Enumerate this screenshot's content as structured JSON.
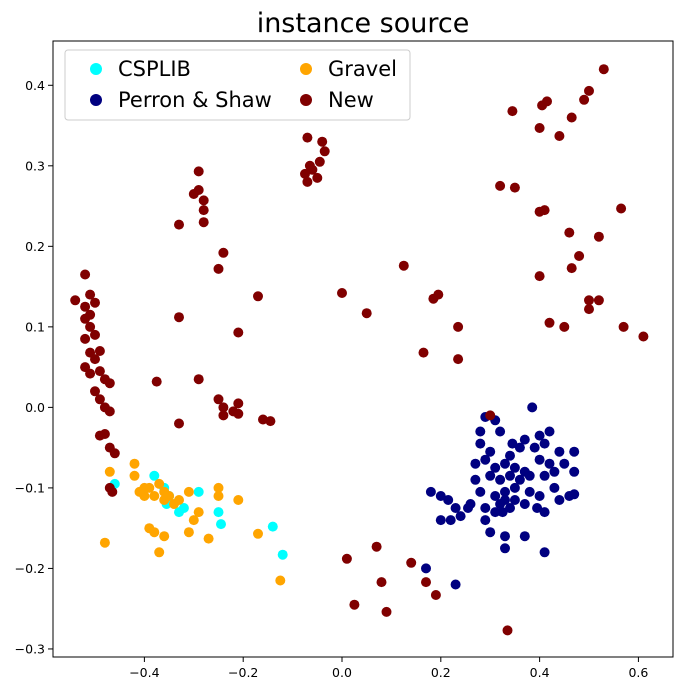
{
  "chart_data": {
    "type": "scatter",
    "title": "instance source",
    "xlabel": "",
    "ylabel": "",
    "xlim": [
      -0.585,
      0.67
    ],
    "ylim": [
      -0.31,
      0.455
    ],
    "xticks": [
      -0.4,
      -0.2,
      0.0,
      0.2,
      0.4,
      0.6
    ],
    "xtick_labels": [
      "−0.4",
      "−0.2",
      "0.0",
      "0.2",
      "0.4",
      "0.6"
    ],
    "yticks": [
      -0.3,
      -0.2,
      -0.1,
      0.0,
      0.1,
      0.2,
      0.3,
      0.4
    ],
    "ytick_labels": [
      "−0.3",
      "−0.2",
      "−0.1",
      "0.0",
      "0.1",
      "0.2",
      "0.3",
      "0.4"
    ],
    "grid": false,
    "legend_position": "top-left",
    "legend_columns": 2,
    "series": [
      {
        "name": "CSPLIB",
        "color": "#00ffff",
        "points": [
          [
            -0.46,
            -0.095
          ],
          [
            -0.38,
            -0.085
          ],
          [
            -0.35,
            -0.11
          ],
          [
            -0.355,
            -0.12
          ],
          [
            -0.33,
            -0.13
          ],
          [
            -0.29,
            -0.105
          ],
          [
            -0.25,
            -0.13
          ],
          [
            -0.245,
            -0.145
          ],
          [
            -0.14,
            -0.148
          ],
          [
            -0.12,
            -0.183
          ],
          [
            -0.36,
            -0.1
          ],
          [
            -0.32,
            -0.125
          ]
        ]
      },
      {
        "name": "Gravel",
        "color": "#ffa500",
        "points": [
          [
            -0.47,
            -0.08
          ],
          [
            -0.42,
            -0.07
          ],
          [
            -0.42,
            -0.085
          ],
          [
            -0.41,
            -0.105
          ],
          [
            -0.4,
            -0.11
          ],
          [
            -0.39,
            -0.1
          ],
          [
            -0.38,
            -0.11
          ],
          [
            -0.37,
            -0.095
          ],
          [
            -0.36,
            -0.115
          ],
          [
            -0.35,
            -0.11
          ],
          [
            -0.34,
            -0.12
          ],
          [
            -0.33,
            -0.115
          ],
          [
            -0.31,
            -0.105
          ],
          [
            -0.29,
            -0.13
          ],
          [
            -0.3,
            -0.14
          ],
          [
            -0.25,
            -0.1
          ],
          [
            -0.25,
            -0.11
          ],
          [
            -0.21,
            -0.115
          ],
          [
            -0.39,
            -0.15
          ],
          [
            -0.38,
            -0.155
          ],
          [
            -0.36,
            -0.16
          ],
          [
            -0.31,
            -0.155
          ],
          [
            -0.27,
            -0.163
          ],
          [
            -0.37,
            -0.18
          ],
          [
            -0.48,
            -0.168
          ],
          [
            -0.17,
            -0.157
          ],
          [
            -0.125,
            -0.215
          ],
          [
            -0.36,
            -0.105
          ],
          [
            -0.4,
            -0.1
          ]
        ]
      },
      {
        "name": "Perron & Shaw",
        "color": "#000080",
        "points": [
          [
            0.29,
            -0.012
          ],
          [
            0.31,
            -0.016
          ],
          [
            0.385,
            0.0
          ],
          [
            0.28,
            -0.03
          ],
          [
            0.32,
            -0.03
          ],
          [
            0.345,
            -0.045
          ],
          [
            0.37,
            -0.04
          ],
          [
            0.4,
            -0.035
          ],
          [
            0.42,
            -0.03
          ],
          [
            0.28,
            -0.045
          ],
          [
            0.3,
            -0.055
          ],
          [
            0.34,
            -0.06
          ],
          [
            0.36,
            -0.05
          ],
          [
            0.39,
            -0.05
          ],
          [
            0.41,
            -0.045
          ],
          [
            0.44,
            -0.055
          ],
          [
            0.47,
            -0.055
          ],
          [
            0.27,
            -0.07
          ],
          [
            0.29,
            -0.065
          ],
          [
            0.31,
            -0.075
          ],
          [
            0.33,
            -0.07
          ],
          [
            0.35,
            -0.075
          ],
          [
            0.37,
            -0.08
          ],
          [
            0.4,
            -0.065
          ],
          [
            0.42,
            -0.07
          ],
          [
            0.45,
            -0.07
          ],
          [
            0.27,
            -0.09
          ],
          [
            0.3,
            -0.085
          ],
          [
            0.32,
            -0.09
          ],
          [
            0.34,
            -0.085
          ],
          [
            0.36,
            -0.09
          ],
          [
            0.38,
            -0.085
          ],
          [
            0.41,
            -0.085
          ],
          [
            0.43,
            -0.08
          ],
          [
            0.47,
            -0.08
          ],
          [
            0.28,
            -0.105
          ],
          [
            0.31,
            -0.11
          ],
          [
            0.33,
            -0.105
          ],
          [
            0.35,
            -0.1
          ],
          [
            0.38,
            -0.105
          ],
          [
            0.4,
            -0.11
          ],
          [
            0.43,
            -0.1
          ],
          [
            0.44,
            -0.115
          ],
          [
            0.46,
            -0.11
          ],
          [
            0.47,
            -0.108
          ],
          [
            0.26,
            -0.12
          ],
          [
            0.29,
            -0.125
          ],
          [
            0.32,
            -0.12
          ],
          [
            0.34,
            -0.125
          ],
          [
            0.37,
            -0.12
          ],
          [
            0.395,
            -0.125
          ],
          [
            0.41,
            -0.13
          ],
          [
            0.2,
            -0.11
          ],
          [
            0.18,
            -0.105
          ],
          [
            0.215,
            -0.115
          ],
          [
            0.23,
            -0.125
          ],
          [
            0.24,
            -0.135
          ],
          [
            0.2,
            -0.14
          ],
          [
            0.22,
            -0.14
          ],
          [
            0.255,
            -0.125
          ],
          [
            0.29,
            -0.14
          ],
          [
            0.31,
            -0.13
          ],
          [
            0.325,
            -0.13
          ],
          [
            0.3,
            -0.155
          ],
          [
            0.33,
            -0.16
          ],
          [
            0.37,
            -0.16
          ],
          [
            0.33,
            -0.175
          ],
          [
            0.41,
            -0.18
          ],
          [
            0.17,
            -0.2
          ],
          [
            0.23,
            -0.22
          ],
          [
            0.33,
            -0.115
          ],
          [
            0.35,
            -0.115
          ]
        ]
      },
      {
        "name": "New",
        "color": "#800000",
        "points": [
          [
            -0.52,
            0.165
          ],
          [
            -0.54,
            0.133
          ],
          [
            -0.52,
            0.125
          ],
          [
            -0.51,
            0.14
          ],
          [
            -0.5,
            0.13
          ],
          [
            -0.51,
            0.115
          ],
          [
            -0.52,
            0.11
          ],
          [
            -0.51,
            0.1
          ],
          [
            -0.5,
            0.09
          ],
          [
            -0.52,
            0.085
          ],
          [
            -0.51,
            0.068
          ],
          [
            -0.49,
            0.07
          ],
          [
            -0.5,
            0.06
          ],
          [
            -0.52,
            0.05
          ],
          [
            -0.51,
            0.042
          ],
          [
            -0.49,
            0.045
          ],
          [
            -0.48,
            0.035
          ],
          [
            -0.47,
            0.03
          ],
          [
            -0.5,
            0.02
          ],
          [
            -0.49,
            0.01
          ],
          [
            -0.48,
            0.0
          ],
          [
            -0.47,
            -0.005
          ],
          [
            -0.49,
            -0.035
          ],
          [
            -0.48,
            -0.033
          ],
          [
            -0.47,
            -0.05
          ],
          [
            -0.46,
            -0.057
          ],
          [
            -0.47,
            -0.1
          ],
          [
            -0.465,
            -0.105
          ],
          [
            -0.375,
            0.032
          ],
          [
            -0.33,
            0.112
          ],
          [
            -0.33,
            -0.02
          ],
          [
            -0.29,
            0.035
          ],
          [
            -0.3,
            0.265
          ],
          [
            -0.29,
            0.27
          ],
          [
            -0.29,
            0.293
          ],
          [
            -0.28,
            0.257
          ],
          [
            -0.28,
            0.245
          ],
          [
            -0.28,
            0.23
          ],
          [
            -0.33,
            0.227
          ],
          [
            -0.25,
            0.172
          ],
          [
            -0.24,
            0.192
          ],
          [
            -0.21,
            0.093
          ],
          [
            -0.17,
            0.138
          ],
          [
            -0.25,
            0.01
          ],
          [
            -0.24,
            0.0
          ],
          [
            -0.24,
            -0.01
          ],
          [
            -0.22,
            -0.005
          ],
          [
            -0.21,
            -0.008
          ],
          [
            -0.21,
            0.005
          ],
          [
            -0.16,
            -0.015
          ],
          [
            -0.145,
            -0.017
          ],
          [
            -0.075,
            0.29
          ],
          [
            -0.07,
            0.28
          ],
          [
            -0.065,
            0.3
          ],
          [
            -0.06,
            0.295
          ],
          [
            -0.05,
            0.285
          ],
          [
            -0.045,
            0.305
          ],
          [
            -0.035,
            0.318
          ],
          [
            -0.04,
            0.33
          ],
          [
            -0.07,
            0.335
          ],
          [
            0.0,
            0.142
          ],
          [
            0.05,
            0.117
          ],
          [
            0.125,
            0.176
          ],
          [
            0.185,
            0.135
          ],
          [
            0.195,
            0.14
          ],
          [
            0.165,
            0.068
          ],
          [
            0.235,
            0.1
          ],
          [
            0.235,
            0.06
          ],
          [
            0.32,
            0.275
          ],
          [
            0.35,
            0.273
          ],
          [
            0.345,
            0.368
          ],
          [
            0.4,
            0.347
          ],
          [
            0.405,
            0.375
          ],
          [
            0.415,
            0.38
          ],
          [
            0.44,
            0.337
          ],
          [
            0.465,
            0.36
          ],
          [
            0.49,
            0.382
          ],
          [
            0.5,
            0.393
          ],
          [
            0.53,
            0.42
          ],
          [
            0.41,
            0.245
          ],
          [
            0.4,
            0.243
          ],
          [
            0.46,
            0.217
          ],
          [
            0.48,
            0.188
          ],
          [
            0.52,
            0.212
          ],
          [
            0.465,
            0.173
          ],
          [
            0.565,
            0.247
          ],
          [
            0.4,
            0.163
          ],
          [
            0.45,
            0.1
          ],
          [
            0.42,
            0.105
          ],
          [
            0.5,
            0.133
          ],
          [
            0.52,
            0.133
          ],
          [
            0.5,
            0.122
          ],
          [
            0.57,
            0.1
          ],
          [
            0.61,
            0.088
          ],
          [
            0.3,
            -0.01
          ],
          [
            0.01,
            -0.188
          ],
          [
            0.025,
            -0.245
          ],
          [
            0.07,
            -0.173
          ],
          [
            0.08,
            -0.217
          ],
          [
            0.09,
            -0.254
          ],
          [
            0.14,
            -0.193
          ],
          [
            0.17,
            -0.217
          ],
          [
            0.19,
            -0.233
          ],
          [
            0.335,
            -0.277
          ]
        ]
      }
    ]
  }
}
